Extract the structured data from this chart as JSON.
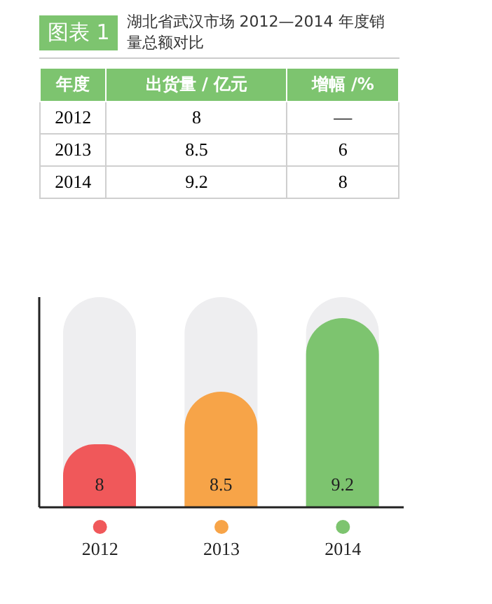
{
  "chart_data": [
    {
      "type": "other",
      "title": "湖北省武汉市场 2012—2014 年度销量总额对比",
      "annotations": [
        "图表 1",
        "年度",
        "出货量 / 亿元",
        "增幅 /%",
        "2012",
        "8",
        "—",
        "2013",
        "8.5",
        "6",
        "2014",
        "9.2",
        "8"
      ]
    },
    {
      "type": "bar",
      "categories": [
        "2012",
        "2013",
        "2014"
      ],
      "values": [
        8,
        8.5,
        9.2
      ],
      "colors": [
        "#f0585a",
        "#f7a448",
        "#7dc46f"
      ],
      "ylim": [
        7.4,
        9.4
      ],
      "tick_labels": "x",
      "data_labels": true
    }
  ]
}
